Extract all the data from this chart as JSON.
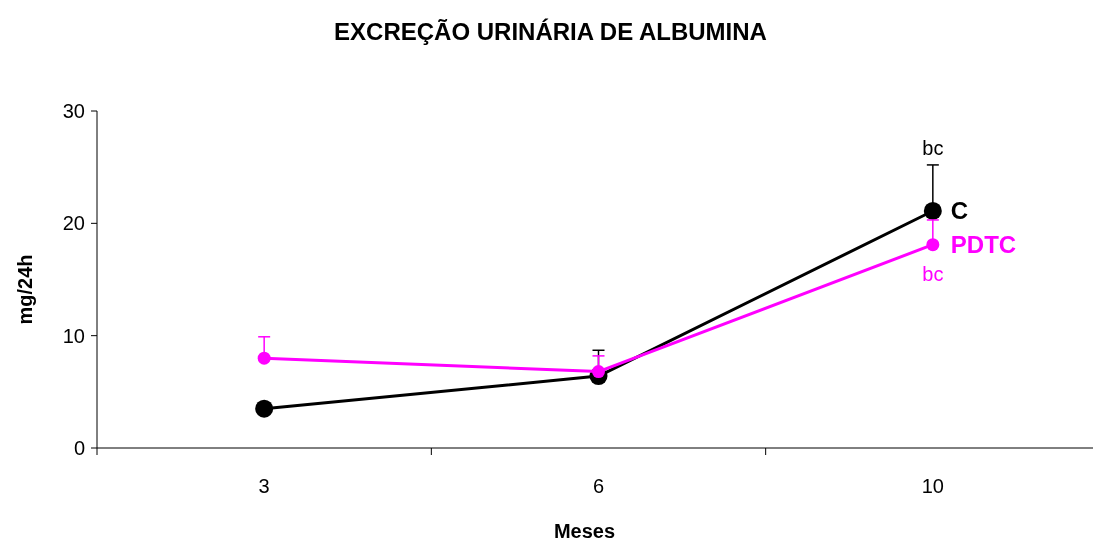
{
  "chart_data": {
    "type": "line",
    "title": "EXCREÇÃO URINÁRIA DE ALBUMINA",
    "xlabel": "Meses",
    "ylabel": "mg/24h",
    "categories": [
      "3",
      "6",
      "10"
    ],
    "series": [
      {
        "name": "C",
        "color": "#000000",
        "values": [
          3.5,
          6.4,
          21.1
        ],
        "errors": [
          null,
          [
            6.4,
            8.7
          ],
          [
            21.1,
            25.2
          ]
        ]
      },
      {
        "name": "PDTC",
        "color": "#ff00ff",
        "values": [
          8.0,
          6.8,
          18.1
        ],
        "errors": [
          [
            8.0,
            9.9
          ],
          [
            6.8,
            8.2
          ],
          [
            18.1,
            20.3
          ]
        ]
      }
    ],
    "annotations": [
      "bc",
      "bc"
    ],
    "ylim": [
      0,
      30
    ],
    "yticks": [
      0,
      10,
      20,
      30
    ],
    "grid": false,
    "marker": "circle",
    "line_style": "solid"
  }
}
